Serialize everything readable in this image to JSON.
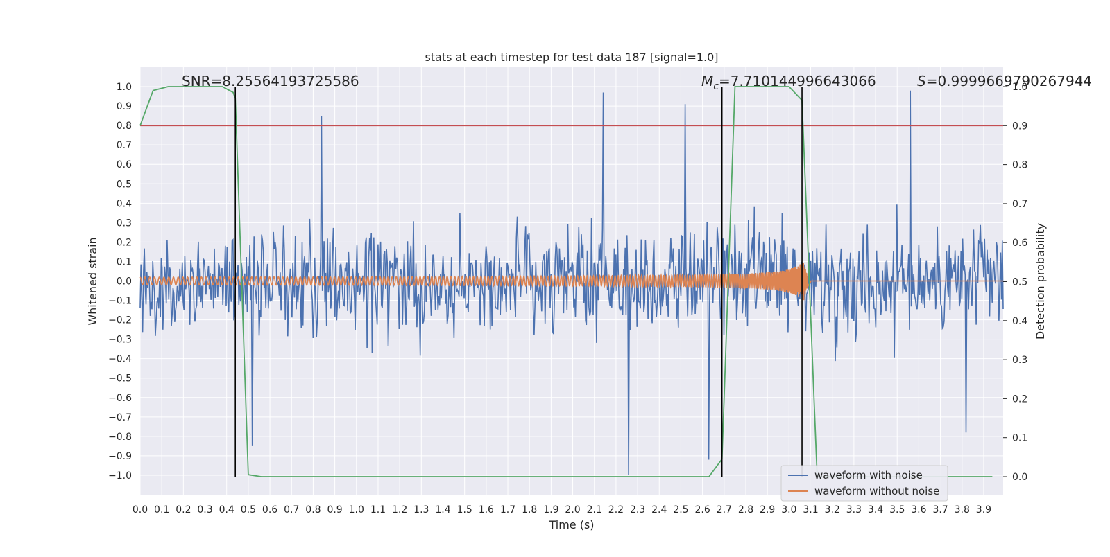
{
  "chart_data": {
    "type": "line",
    "title": "stats at each timestep for test data 187 [signal=1.0]",
    "xlabel": "Time (s)",
    "ylabel": "Whitened strain",
    "y2label": "Detection probability",
    "xlim": [
      0.0,
      3.99
    ],
    "ylim": [
      -1.1,
      1.1
    ],
    "y2lim": [
      -0.05,
      1.0
    ],
    "x_ticks": [
      "0.0",
      "0.1",
      "0.2",
      "0.3",
      "0.4",
      "0.5",
      "0.6",
      "0.7",
      "0.8",
      "0.9",
      "1.0",
      "1.1",
      "1.2",
      "1.3",
      "1.4",
      "1.5",
      "1.6",
      "1.7",
      "1.8",
      "1.9",
      "2.0",
      "2.1",
      "2.2",
      "2.3",
      "2.4",
      "2.5",
      "2.6",
      "2.7",
      "2.8",
      "2.9",
      "3.0",
      "3.1",
      "3.2",
      "3.3",
      "3.4",
      "3.5",
      "3.6",
      "3.7",
      "3.8",
      "3.9"
    ],
    "y_ticks": [
      "1.0",
      "0.9",
      "0.8",
      "0.7",
      "0.6",
      "0.5",
      "0.4",
      "0.3",
      "0.2",
      "0.1",
      "0.0",
      "−0.1",
      "−0.2",
      "−0.3",
      "−0.4",
      "−0.5",
      "−0.6",
      "−0.7",
      "−0.8",
      "−0.9",
      "−1.0"
    ],
    "y2_ticks": [
      "1.0",
      "0.9",
      "0.8",
      "0.7",
      "0.6",
      "0.5",
      "0.4",
      "0.3",
      "0.2",
      "0.1",
      "0.0"
    ],
    "grid": true,
    "legend_position": "bottom-right",
    "annotations": {
      "snr": "SNR=8.25564193725586",
      "mc_symbol": "M",
      "mc_sub": "c",
      "mc_value": "=7.710144996643066",
      "s_symbol": "S",
      "s_value": "=0.9999669790267944"
    },
    "threshold": {
      "y2": 0.9,
      "color": "#c44e52"
    },
    "vertical_markers": [
      {
        "x": 0.44,
        "y2_range": [
          0.0,
          1.0
        ]
      },
      {
        "x": 2.69,
        "y2_range": [
          0.0,
          1.0
        ]
      },
      {
        "x": 3.06,
        "y2_range": [
          0.0,
          1.0
        ]
      }
    ],
    "series": [
      {
        "name": "waveform with noise",
        "color": "#4c72b0",
        "axis": "left",
        "samples": 1024,
        "envelope": {
          "typical_amplitude": 0.3,
          "min": -1.0,
          "max": 0.98
        },
        "peaks": [
          {
            "x": 2.14,
            "y": 0.97
          },
          {
            "x": 3.56,
            "y": 0.98
          },
          {
            "x": 2.52,
            "y": 0.91
          },
          {
            "x": 0.84,
            "y": 0.85
          },
          {
            "x": 2.26,
            "y": -1.0
          },
          {
            "x": 2.63,
            "y": -0.92
          },
          {
            "x": 0.52,
            "y": -0.85
          },
          {
            "x": 3.82,
            "y": -0.78
          }
        ]
      },
      {
        "name": "waveform without noise",
        "color": "#dd8452",
        "axis": "left",
        "type": "chirp",
        "start_amplitude": 0.02,
        "merger_time": 3.07,
        "peak_amplitude": 0.2,
        "end_time": 3.1
      },
      {
        "name": "",
        "color": "#55a868",
        "axis": "right",
        "x": [
          0.0,
          0.06,
          0.13,
          0.19,
          0.25,
          0.31,
          0.38,
          0.43,
          0.44,
          0.5,
          0.56,
          0.63,
          0.69,
          0.75,
          1.0,
          1.5,
          2.0,
          2.5,
          2.63,
          2.69,
          2.75,
          2.81,
          2.88,
          2.94,
          3.0,
          3.06,
          3.13,
          3.19,
          3.25,
          3.5,
          3.75,
          3.94
        ],
        "y": [
          0.9,
          0.99,
          1.0,
          1.0,
          1.0,
          1.0,
          1.0,
          0.985,
          0.97,
          0.005,
          0.0,
          0.0,
          0.0,
          0.0,
          0.0,
          0.0,
          0.0,
          0.0,
          0.0,
          0.045,
          1.0,
          1.0,
          1.0,
          1.0,
          1.0,
          0.965,
          0.0,
          0.0,
          0.0,
          0.0,
          0.0,
          0.0
        ]
      }
    ]
  }
}
